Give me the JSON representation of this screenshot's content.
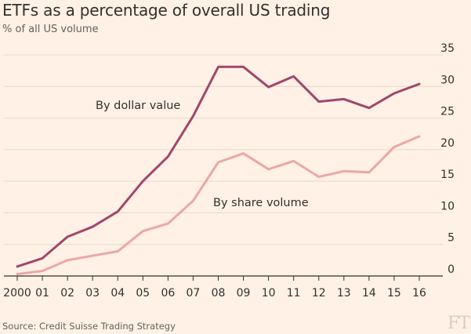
{
  "title": "ETFs as a percentage of overall US trading",
  "subtitle": "% of all US volume",
  "source": "Source: Credit Suisse Trading Strategy",
  "logo_text": "FT",
  "colors": {
    "background": "#fff1e5",
    "dollar_series": "#a2456d",
    "share_series": "#eba7a7",
    "grid": "#e3d8ce",
    "axis": "#33302e",
    "text": "#33302e"
  },
  "chart_data": {
    "type": "line",
    "x": [
      "2000",
      "01",
      "02",
      "03",
      "04",
      "05",
      "06",
      "07",
      "08",
      "09",
      "10",
      "11",
      "12",
      "13",
      "14",
      "15",
      "16"
    ],
    "y_ticks": [
      0,
      5,
      10,
      15,
      20,
      25,
      30,
      35
    ],
    "ylim": [
      0,
      35
    ],
    "grid": true,
    "y_axis_side": "right",
    "series": [
      {
        "name": "By dollar value",
        "color": "#a2456d",
        "values": [
          1.5,
          2.8,
          6.2,
          7.8,
          10.2,
          15.0,
          18.9,
          25.3,
          33.1,
          33.1,
          29.9,
          31.6,
          27.6,
          28.0,
          26.6,
          28.9,
          30.4
        ]
      },
      {
        "name": "By share volume",
        "color": "#eba7a7",
        "values": [
          0.3,
          0.8,
          2.5,
          3.2,
          3.9,
          7.1,
          8.3,
          11.9,
          18.0,
          19.4,
          16.9,
          18.2,
          15.7,
          16.6,
          16.4,
          20.4,
          22.1
        ]
      }
    ]
  }
}
